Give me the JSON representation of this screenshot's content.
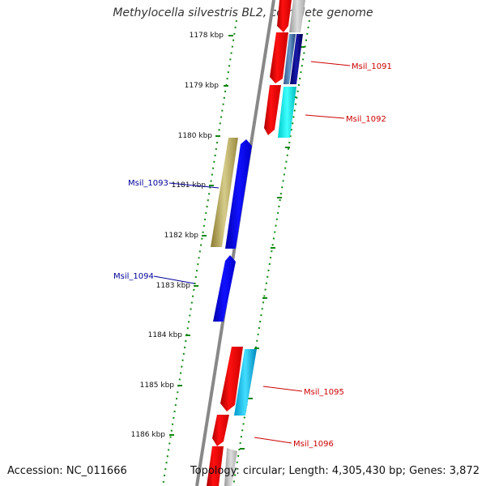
{
  "title": "Methylocella silvestris BL2, complete genome",
  "accession_text": "Accession: NC_011666",
  "topology_text": "Topology: circular; Length: 4,305,430 bp; Genes: 3,872",
  "colors": {
    "backbone": "#888888",
    "tick": "#118811",
    "forward_label": "#cc0000",
    "reverse_label": "#000099"
  },
  "ticks": [
    "1178 kbp",
    "1179 kbp",
    "1180 kbp",
    "1181 kbp",
    "1182 kbp",
    "1183 kbp",
    "1184 kbp",
    "1185 kbp",
    "1186 kbp"
  ],
  "gene_labels": [
    "Msil_1091",
    "Msil_1092",
    "Msil_1093",
    "Msil_1094",
    "Msil_1095",
    "Msil_1096"
  ]
}
